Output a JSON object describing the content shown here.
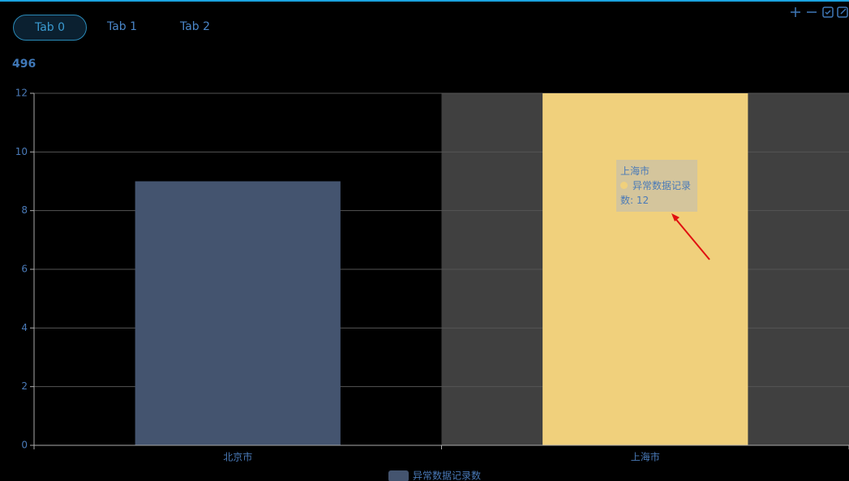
{
  "tabs": [
    "Tab 0",
    "Tab 1",
    "Tab 2"
  ],
  "kpi": "496",
  "chart_data": {
    "type": "bar",
    "categories": [
      "北京市",
      "上海市"
    ],
    "series": [
      {
        "name": "异常数据记录数",
        "color": "#44546f",
        "emphasis_color": "#f0d07c",
        "values": [
          9,
          12
        ]
      }
    ],
    "ylim": [
      0,
      12
    ],
    "yticks": [
      0,
      2,
      4,
      6,
      8,
      10,
      12
    ],
    "grid": true,
    "legend": "bottom"
  }
}
